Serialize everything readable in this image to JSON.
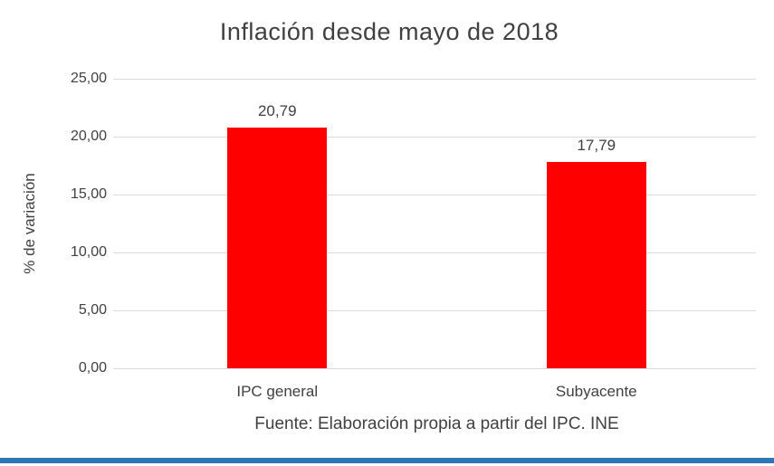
{
  "chart_data": {
    "type": "bar",
    "title": "Inflación desde mayo de 2018",
    "ylabel": "% de variación",
    "xlabel": "",
    "categories": [
      "IPC general",
      "Subyacente"
    ],
    "values": [
      20.79,
      17.79
    ],
    "value_labels": [
      "20,79",
      "17,79"
    ],
    "ylim": [
      0,
      25
    ],
    "yticks": [
      {
        "value": 0,
        "label": "0,00"
      },
      {
        "value": 5,
        "label": "5,00"
      },
      {
        "value": 10,
        "label": "10,00"
      },
      {
        "value": 15,
        "label": "15,00"
      },
      {
        "value": 20,
        "label": "20,00"
      },
      {
        "value": 25,
        "label": "25,00"
      }
    ],
    "grid": true,
    "legend": "none",
    "bar_color": "#ff0000",
    "gridline_color": "#d9d9d9",
    "text_color": "#404040",
    "source_note": "Fuente: Elaboración propia a partir del IPC. INE"
  },
  "decor": {
    "bottom_accent_color": "#2e75b6"
  }
}
